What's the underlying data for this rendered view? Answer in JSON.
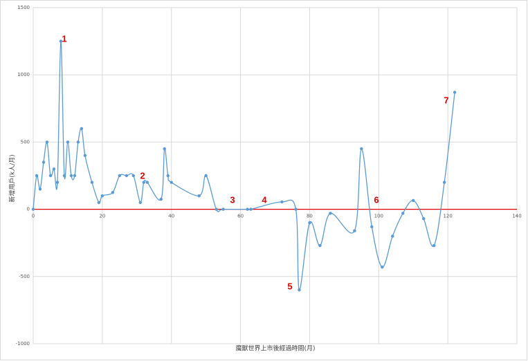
{
  "chart_data": {
    "type": "scatter-smooth",
    "x_label": "魔獸世界上市後經過時間(月)",
    "y_label": "新增用戶(k人/月)",
    "xlim": [
      0,
      140
    ],
    "xticks": [
      0,
      20,
      40,
      60,
      80,
      100,
      120,
      140
    ],
    "ylim": [
      -1000,
      1500
    ],
    "yticks": [
      -1000,
      -500,
      0,
      500,
      1000,
      1500
    ],
    "grid": true,
    "hline": {
      "value": 0,
      "color": "#e00000"
    },
    "series": [
      {
        "color": "#5b9bd5",
        "x": [
          0,
          1,
          2,
          3,
          4,
          5,
          6,
          7,
          8,
          9,
          10,
          11,
          12,
          13,
          14,
          15,
          17,
          19,
          20,
          23,
          25,
          27,
          29,
          31,
          32,
          33,
          37,
          38,
          39,
          40,
          48,
          50,
          53,
          55,
          62,
          63,
          72,
          76,
          77,
          80,
          83,
          86,
          93,
          95,
          98,
          101,
          104,
          107,
          110,
          113,
          116,
          119,
          122
        ],
        "values": [
          0,
          250,
          150,
          350,
          500,
          250,
          300,
          200,
          1250,
          250,
          500,
          250,
          250,
          500,
          600,
          400,
          200,
          50,
          100,
          125,
          250,
          250,
          250,
          50,
          200,
          200,
          75,
          450,
          250,
          200,
          100,
          250,
          0,
          0,
          0,
          0,
          55,
          0,
          -600,
          -100,
          -270,
          -30,
          -160,
          450,
          -130,
          -430,
          -200,
          -30,
          65,
          -70,
          -270,
          200,
          870
        ]
      }
    ],
    "annotations": [
      "1",
      "2",
      "3",
      "4",
      "5",
      "6",
      "7"
    ]
  }
}
